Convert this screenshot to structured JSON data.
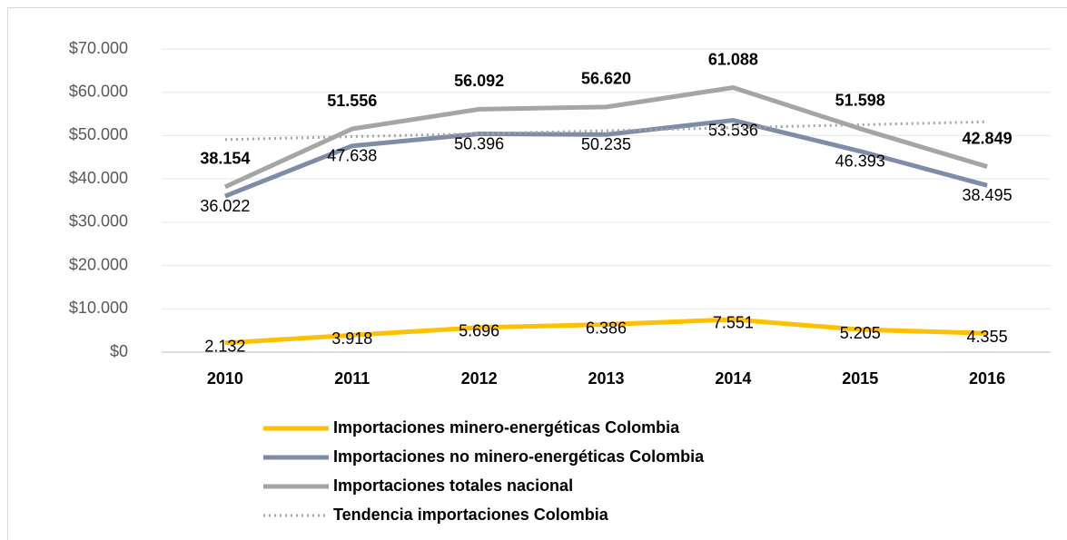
{
  "chart_data": {
    "type": "line",
    "categories": [
      "2010",
      "2011",
      "2012",
      "2013",
      "2014",
      "2015",
      "2016"
    ],
    "ylim": [
      0,
      70000
    ],
    "yticks": [
      {
        "value": 0,
        "label": "$0"
      },
      {
        "value": 10000,
        "label": "$10.000"
      },
      {
        "value": 20000,
        "label": "$20.000"
      },
      {
        "value": 30000,
        "label": "$30.000"
      },
      {
        "value": 40000,
        "label": "$40.000"
      },
      {
        "value": 50000,
        "label": "$50.000"
      },
      {
        "value": 60000,
        "label": "$60.000"
      },
      {
        "value": 70000,
        "label": "$70.000"
      }
    ],
    "grid": true,
    "legend": "bottom",
    "series": [
      {
        "name": "Importaciones minero-energéticas Colombia",
        "color": "#ffc000",
        "style": "solid",
        "values": [
          2132,
          3918,
          5696,
          6386,
          7551,
          5205,
          4355
        ],
        "value_labels": [
          "2.132",
          "3.918",
          "5.696",
          "6.386",
          "7.551",
          "5.205",
          "4.355"
        ]
      },
      {
        "name": "Importaciones no minero-energéticas Colombia",
        "color": "#7f8ca8",
        "style": "solid",
        "values": [
          36022,
          47638,
          50396,
          50235,
          53536,
          46393,
          38495
        ],
        "value_labels": [
          "36.022",
          "47.638",
          "50.396",
          "50.235",
          "53.536",
          "46.393",
          "38.495"
        ]
      },
      {
        "name": "Importaciones totales nacional",
        "color": "#a5a5a5",
        "style": "solid",
        "values": [
          38154,
          51556,
          56092,
          56620,
          61088,
          51598,
          42849
        ],
        "value_labels": [
          "38.154",
          "51.556",
          "56.092",
          "56.620",
          "61.088",
          "51.598",
          "42.849"
        ]
      },
      {
        "name": "Tendencia importaciones Colombia",
        "color": "#a5a5a5",
        "style": "dotted",
        "values": [
          49084,
          49768,
          50453,
          51137,
          51822,
          52506,
          53190
        ]
      }
    ]
  }
}
